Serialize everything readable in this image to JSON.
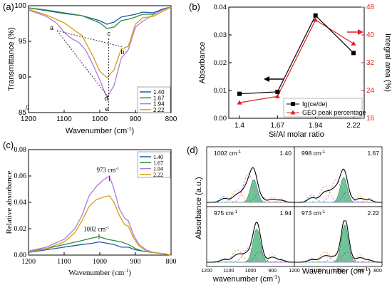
{
  "colors": {
    "1.40": "#1f5aa6",
    "1.67": "#2e8b3d",
    "1.94": "#b07ad6",
    "2.22": "#d4a010",
    "black": "#000000",
    "red": "#e32020",
    "green_fill": "#3cb371"
  },
  "chart_data": [
    {
      "panel": "(a)",
      "type": "line",
      "xlabel": "Wavenumber (cm",
      "xlabel_sup": "-1",
      "xlabel_end": ")",
      "ylabel": "Transmittance (%)",
      "xlim": [
        1200,
        800
      ],
      "ylim": [
        85,
        100
      ],
      "xticks": [
        "1200",
        "1100",
        "1000",
        "900",
        "800"
      ],
      "yticks": [
        "85",
        "90",
        "95",
        "100"
      ],
      "legend": [
        "1.40",
        "1.67",
        "1.94",
        "2.22"
      ],
      "annotations": [
        "a",
        "b",
        "c",
        "d",
        "e"
      ],
      "series": [
        {
          "name": "1.40",
          "x": [
            1200,
            1150,
            1100,
            1050,
            1000,
            980,
            960,
            940,
            920,
            900,
            880,
            850,
            820,
            800
          ],
          "y": [
            99.7,
            99.3,
            98.9,
            98.6,
            97.9,
            97.4,
            97.7,
            98.4,
            98.6,
            98.8,
            99.1,
            99.0,
            99.6,
            99.8
          ]
        },
        {
          "name": "1.67",
          "x": [
            1200,
            1150,
            1100,
            1050,
            1000,
            980,
            960,
            940,
            920,
            900,
            880,
            850,
            820,
            800
          ],
          "y": [
            99.7,
            99.4,
            99.0,
            98.6,
            97.6,
            96.8,
            97.0,
            97.9,
            98.1,
            98.4,
            98.8,
            98.8,
            99.5,
            99.8
          ]
        },
        {
          "name": "1.94",
          "x": [
            1200,
            1150,
            1120,
            1100,
            1080,
            1060,
            1040,
            1020,
            1000,
            980,
            960,
            940,
            920,
            900,
            880,
            860,
            840,
            820,
            800
          ],
          "y": [
            99.4,
            98.5,
            97.5,
            96.3,
            95.4,
            94.9,
            93.8,
            91.8,
            89.6,
            87.1,
            88.8,
            92.6,
            93.8,
            97.0,
            97.8,
            98.4,
            99.0,
            99.5,
            99.8
          ]
        },
        {
          "name": "2.22",
          "x": [
            1200,
            1150,
            1100,
            1050,
            1020,
            1000,
            980,
            960,
            940,
            920,
            900,
            880,
            850,
            820,
            800
          ],
          "y": [
            99.5,
            98.7,
            97.6,
            95.8,
            93.0,
            90.8,
            89.9,
            91.0,
            93.9,
            94.3,
            97.4,
            98.3,
            98.5,
            99.3,
            99.8
          ]
        }
      ]
    },
    {
      "panel": "(b)",
      "type": "line",
      "xlabel": "Si/Al molar ratio",
      "ylabel": "Absorbance",
      "y2label": "Integral area (%)",
      "categories": [
        "1.4",
        "1.67",
        "1.94",
        "2.22"
      ],
      "ylim": [
        0.0,
        0.04
      ],
      "y2lim": [
        16,
        48
      ],
      "yticks": [
        "0.00",
        "0.01",
        "0.02",
        "0.03",
        "0.04"
      ],
      "y2ticks": [
        "16",
        "24",
        "32",
        "40",
        "48"
      ],
      "series": [
        {
          "name": "Ig(ce/de)",
          "axis": "left",
          "values": [
            0.0088,
            0.0095,
            0.037,
            0.0235
          ]
        },
        {
          "name": "GEO peak percentage",
          "axis": "right",
          "values": [
            20.5,
            22.3,
            44.3,
            37.5
          ]
        }
      ]
    },
    {
      "panel": "(c)",
      "type": "line",
      "xlabel": "Wavenumber (cm",
      "xlabel_sup": "-1",
      "xlabel_end": ")",
      "ylabel": "Relative absorbance",
      "xlim": [
        1200,
        800
      ],
      "ylim": [
        0.0,
        0.08
      ],
      "xticks": [
        "1200",
        "1100",
        "1000",
        "900",
        "800"
      ],
      "yticks": [
        "0.00",
        "0.02",
        "0.04",
        "0.06",
        "0.08"
      ],
      "legend": [
        "1.40",
        "1.67",
        "1.94",
        "2.22"
      ],
      "annotations": [
        "973 cm",
        "1002 cm"
      ],
      "series": [
        {
          "name": "1.40",
          "x": [
            1200,
            1150,
            1100,
            1050,
            1020,
            1002,
            980,
            960,
            940,
            920,
            900,
            880,
            850,
            820,
            800
          ],
          "y": [
            0.002,
            0.004,
            0.006,
            0.008,
            0.009,
            0.01,
            0.009,
            0.008,
            0.006,
            0.006,
            0.004,
            0.003,
            0.002,
            0.001,
            0.0
          ]
        },
        {
          "name": "1.67",
          "x": [
            1200,
            1150,
            1100,
            1050,
            1020,
            1002,
            980,
            960,
            940,
            920,
            900,
            880,
            850,
            820,
            800
          ],
          "y": [
            0.003,
            0.005,
            0.008,
            0.011,
            0.013,
            0.014,
            0.012,
            0.011,
            0.01,
            0.008,
            0.005,
            0.003,
            0.002,
            0.001,
            0.0
          ]
        },
        {
          "name": "1.94",
          "x": [
            1200,
            1150,
            1100,
            1070,
            1050,
            1030,
            1010,
            990,
            973,
            960,
            945,
            930,
            920,
            905,
            890,
            870,
            850,
            820,
            800
          ],
          "y": [
            0.003,
            0.006,
            0.012,
            0.02,
            0.03,
            0.045,
            0.052,
            0.057,
            0.06,
            0.05,
            0.035,
            0.028,
            0.026,
            0.015,
            0.008,
            0.004,
            0.002,
            0.001,
            0.0
          ]
        },
        {
          "name": "2.22",
          "x": [
            1200,
            1150,
            1100,
            1070,
            1050,
            1030,
            1010,
            990,
            973,
            960,
            945,
            930,
            920,
            905,
            890,
            870,
            850,
            820,
            800
          ],
          "y": [
            0.002,
            0.005,
            0.01,
            0.017,
            0.026,
            0.037,
            0.042,
            0.044,
            0.045,
            0.04,
            0.03,
            0.023,
            0.022,
            0.013,
            0.007,
            0.003,
            0.002,
            0.001,
            0.0
          ]
        }
      ]
    },
    {
      "panel": "(d)",
      "type": "area",
      "xlabel": "wavenumber (cm",
      "xlabel_sup": "-1",
      "xlabel_end": ")",
      "xlabel2": "Wavenumber (cm",
      "ylabel": "Absorbance (a.u.)",
      "xticks_left": [
        "1200",
        "1100",
        "1000",
        "900"
      ],
      "xticks_right": [
        "1200",
        "1100",
        "1000",
        "900",
        "800"
      ],
      "subpanels": [
        {
          "ratio": "1.40",
          "peak_label": "1002 cm",
          "peak_sup": "-1"
        },
        {
          "ratio": "1.67",
          "peak_label": "998 cm",
          "peak_sup": "-1"
        },
        {
          "ratio": "1.94",
          "peak_label": "975 cm",
          "peak_sup": "-1"
        },
        {
          "ratio": "2.22",
          "peak_label": "973 cm",
          "peak_sup": "-1"
        }
      ]
    }
  ],
  "labels": {
    "a": "(a)",
    "b": "(b)",
    "c": "(c)",
    "d": "(d)",
    "sup": "-1"
  }
}
